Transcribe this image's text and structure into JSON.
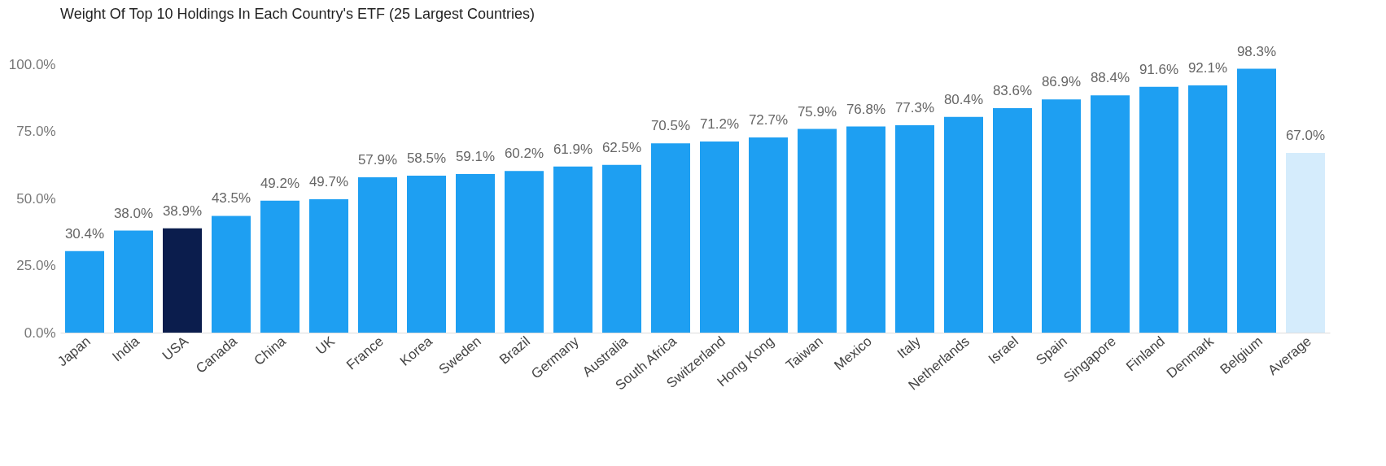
{
  "chart_data": {
    "type": "bar",
    "title": "Weight Of Top 10 Holdings In Each Country's ETF (25 Largest Countries)",
    "categories": [
      "Japan",
      "India",
      "USA",
      "Canada",
      "China",
      "UK",
      "France",
      "Korea",
      "Sweden",
      "Brazil",
      "Germany",
      "Australia",
      "South Africa",
      "Switzerland",
      "Hong Kong",
      "Taiwan",
      "Mexico",
      "Italy",
      "Netherlands",
      "Israel",
      "Spain",
      "Singapore",
      "Finland",
      "Denmark",
      "Belgium",
      "Average"
    ],
    "values": [
      30.4,
      38.0,
      38.9,
      43.5,
      49.2,
      49.7,
      57.9,
      58.5,
      59.1,
      60.2,
      61.9,
      62.5,
      70.5,
      71.2,
      72.7,
      75.9,
      76.8,
      77.3,
      80.4,
      83.6,
      86.9,
      88.4,
      91.6,
      92.1,
      98.3,
      67.0
    ],
    "value_labels": [
      "30.4%",
      "38.0%",
      "38.9%",
      "43.5%",
      "49.2%",
      "49.7%",
      "57.9%",
      "58.5%",
      "59.1%",
      "60.2%",
      "61.9%",
      "62.5%",
      "70.5%",
      "71.2%",
      "72.7%",
      "75.9%",
      "76.8%",
      "77.3%",
      "80.4%",
      "83.6%",
      "86.9%",
      "88.4%",
      "91.6%",
      "92.1%",
      "98.3%",
      "67.0%"
    ],
    "colors": [
      "#1e9ff2",
      "#1e9ff2",
      "#0b1d4d",
      "#1e9ff2",
      "#1e9ff2",
      "#1e9ff2",
      "#1e9ff2",
      "#1e9ff2",
      "#1e9ff2",
      "#1e9ff2",
      "#1e9ff2",
      "#1e9ff2",
      "#1e9ff2",
      "#1e9ff2",
      "#1e9ff2",
      "#1e9ff2",
      "#1e9ff2",
      "#1e9ff2",
      "#1e9ff2",
      "#1e9ff2",
      "#1e9ff2",
      "#1e9ff2",
      "#1e9ff2",
      "#1e9ff2",
      "#1e9ff2",
      "#d5ecfc"
    ],
    "ylim": [
      0,
      100
    ],
    "yticks": [
      {
        "value": 0,
        "label": "0.0%"
      },
      {
        "value": 25,
        "label": "25.0%"
      },
      {
        "value": 50,
        "label": "50.0%"
      },
      {
        "value": 75,
        "label": "75.0%"
      },
      {
        "value": 100,
        "label": "100.0%"
      }
    ],
    "grid": false
  }
}
